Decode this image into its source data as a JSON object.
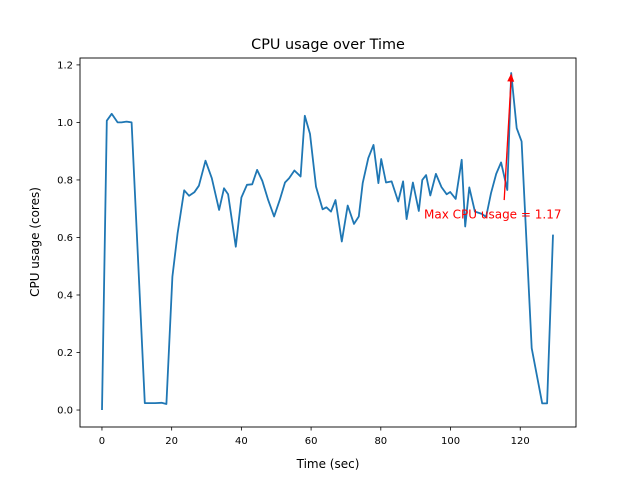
{
  "chart_data": {
    "type": "line",
    "title": "CPU usage over Time",
    "xlabel": "Time (sec)",
    "ylabel": "CPU usage (cores)",
    "xlim": [
      -6.3,
      136
    ],
    "ylim": [
      -0.059,
      1.224
    ],
    "xticks": [
      0,
      20,
      40,
      60,
      80,
      100,
      120
    ],
    "yticks": [
      0.0,
      0.2,
      0.4,
      0.6,
      0.8,
      1.0,
      1.2
    ],
    "xtick_labels": [
      "0",
      "20",
      "40",
      "60",
      "80",
      "100",
      "120"
    ],
    "ytick_labels": [
      "0.0",
      "0.2",
      "0.4",
      "0.6",
      "0.8",
      "1.0",
      "1.2"
    ],
    "grid": false,
    "line_color": "#1f77b4",
    "x": [
      0,
      1.4,
      2.8,
      4.5,
      5.6,
      7,
      8.5,
      12.3,
      15.2,
      17.1,
      18.5,
      20.2,
      21.7,
      23.6,
      25,
      26.5,
      27.8,
      29.7,
      31.5,
      33.6,
      35,
      36.2,
      38.4,
      40,
      41.6,
      43.1,
      44.5,
      46,
      47.7,
      49.4,
      51,
      52.5,
      53.7,
      55.2,
      57,
      58.2,
      59.7,
      61.4,
      63.3,
      64.4,
      65.7,
      67,
      68.8,
      70.5,
      72.3,
      73.7,
      74.8,
      76.4,
      77.9,
      79.3,
      80.1,
      81.5,
      83.1,
      85,
      86.4,
      87.4,
      89.2,
      90.9,
      91.9,
      93,
      94.2,
      95.8,
      97.4,
      98.9,
      99.9,
      101.5,
      103.2,
      104.2,
      105.4,
      107,
      109,
      110.2,
      111.6,
      113.1,
      114.5,
      116.3,
      117.4,
      119,
      120.4,
      123.3,
      126.3,
      127.7,
      129.4
    ],
    "y": [
      0,
      1.006,
      1.03,
      1.0,
      1.0,
      1.003,
      1.0,
      0.024,
      0.024,
      0.025,
      0.021,
      0.464,
      0.615,
      0.764,
      0.745,
      0.757,
      0.78,
      0.867,
      0.806,
      0.696,
      0.771,
      0.75,
      0.568,
      0.739,
      0.783,
      0.785,
      0.835,
      0.797,
      0.73,
      0.673,
      0.73,
      0.791,
      0.806,
      0.833,
      0.812,
      1.023,
      0.96,
      0.777,
      0.698,
      0.705,
      0.69,
      0.73,
      0.586,
      0.711,
      0.647,
      0.673,
      0.789,
      0.876,
      0.922,
      0.789,
      0.873,
      0.791,
      0.795,
      0.725,
      0.795,
      0.664,
      0.791,
      0.692,
      0.8,
      0.817,
      0.746,
      0.821,
      0.775,
      0.75,
      0.758,
      0.734,
      0.87,
      0.638,
      0.774,
      0.69,
      0.682,
      0.671,
      0.754,
      0.821,
      0.861,
      0.765,
      1.172,
      0.98,
      0.934,
      0.215,
      0.023,
      0.023,
      0.61
    ],
    "annotation": {
      "text": "Max CPU usage = 1.17",
      "color": "#ff0000",
      "xy": [
        117.4,
        1.17
      ],
      "xytext": [
        92.4,
        0.68
      ],
      "arrow_tail": [
        115.4,
        0.73
      ]
    }
  }
}
